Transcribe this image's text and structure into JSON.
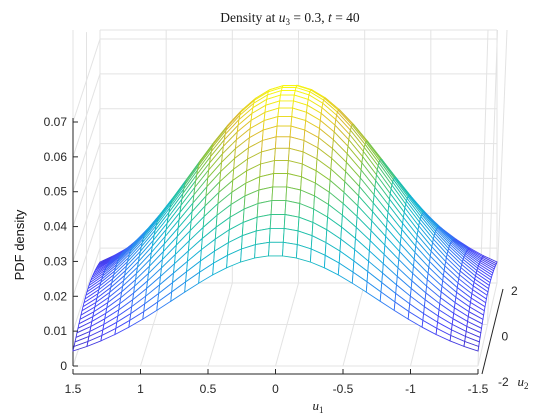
{
  "chart_data": {
    "type": "surface",
    "title": "Density at u₃ = 0.3, t = 40",
    "title_parts": {
      "lead": "Density at ",
      "var1": "u",
      "sub1": "3",
      "mid": " = 0.3, ",
      "var2": "t",
      "tail": " = 40"
    },
    "xlabel": {
      "var": "u",
      "sub": "1"
    },
    "ylabel": {
      "var": "u",
      "sub": "2"
    },
    "zlabel": "PDF density",
    "x_ticks": [
      "1.5",
      "1",
      "0.5",
      "0",
      "-0.5",
      "-1",
      "-1.5"
    ],
    "y_ticks": [
      "-2",
      "0",
      "2"
    ],
    "z_ticks": [
      "0",
      "0.01",
      "0.02",
      "0.03",
      "0.04",
      "0.05",
      "0.06",
      "0.07"
    ],
    "xlim": [
      -1.5,
      1.5
    ],
    "ylim": [
      -2,
      2
    ],
    "zlim": [
      0,
      0.07
    ],
    "surface": {
      "function": "gaussian",
      "peak": 0.066,
      "x_center": 0.0,
      "y_center": 0.3,
      "sigma_x": 0.95,
      "sigma_y": 2.4,
      "grid_x_count": 30,
      "grid_y_count": 28
    },
    "colormap": [
      "#3e26a8",
      "#4743f8",
      "#2e84f4",
      "#13b3d6",
      "#24c49a",
      "#8cc43a",
      "#dbbb2f",
      "#f9fb0e"
    ],
    "grid": true
  }
}
